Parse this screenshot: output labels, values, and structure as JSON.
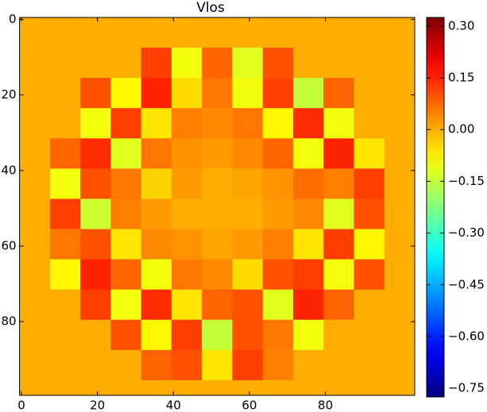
{
  "chart_data": {
    "type": "heatmap",
    "title": "Vlos",
    "colormap": "jet",
    "x": [
      3.5,
      11.5,
      19.5,
      27.5,
      35.5,
      43.5,
      51.5,
      59.5,
      67.5,
      75.5,
      83.5,
      91.5,
      99.5
    ],
    "y": [
      3.5,
      11.5,
      19.5,
      27.5,
      35.5,
      43.5,
      51.5,
      59.5,
      67.5,
      75.5,
      83.5,
      91.5,
      99.5
    ],
    "z": [
      [
        0,
        0,
        0,
        0,
        0,
        0,
        0,
        0,
        0,
        0,
        0,
        0,
        0
      ],
      [
        0,
        0,
        0,
        0,
        0.12,
        -0.1,
        0.08,
        -0.12,
        0.1,
        0,
        0,
        0,
        0
      ],
      [
        0,
        0,
        0.1,
        -0.08,
        0.15,
        -0.05,
        0.06,
        -0.1,
        0.12,
        -0.15,
        0.08,
        0,
        0
      ],
      [
        0,
        0,
        -0.1,
        0.12,
        -0.06,
        0.05,
        0.04,
        0.06,
        -0.08,
        0.14,
        -0.1,
        0,
        0
      ],
      [
        0,
        0.08,
        0.14,
        -0.12,
        0.06,
        0.03,
        0.02,
        0.04,
        0.08,
        -0.1,
        0.15,
        -0.06,
        0
      ],
      [
        0,
        -0.1,
        0.1,
        0.06,
        -0.04,
        0.02,
        0,
        0.01,
        0.03,
        0.07,
        0.05,
        0.12,
        0
      ],
      [
        0,
        0.12,
        -0.14,
        0.05,
        0.02,
        0,
        0,
        0,
        0.02,
        0.04,
        -0.12,
        0.1,
        0
      ],
      [
        0,
        0.06,
        0.1,
        -0.06,
        0.04,
        0.03,
        0.01,
        0.02,
        0.05,
        -0.06,
        0.12,
        -0.08,
        0
      ],
      [
        0,
        -0.08,
        0.15,
        0.08,
        -0.1,
        0.06,
        0.04,
        -0.05,
        0.1,
        0.12,
        -0.1,
        0.1,
        0
      ],
      [
        0,
        0,
        0.12,
        -0.1,
        0.14,
        -0.06,
        0.08,
        0.1,
        -0.12,
        0.15,
        0.08,
        0,
        0
      ],
      [
        0,
        0,
        0,
        0.1,
        -0.08,
        0.12,
        -0.15,
        0.1,
        0.06,
        -0.1,
        0,
        0,
        0
      ],
      [
        0,
        0,
        0,
        0,
        0.08,
        0.1,
        -0.06,
        0.12,
        0.05,
        0,
        0,
        0,
        0
      ],
      [
        0,
        0,
        0,
        0,
        0,
        0,
        0,
        0,
        0,
        0,
        0,
        0,
        0
      ]
    ],
    "xlim": [
      -0.5,
      103.5
    ],
    "ylim": [
      99.5,
      -0.5
    ],
    "xticks": [
      0,
      20,
      40,
      60,
      80
    ],
    "yticks": [
      0,
      20,
      40,
      60,
      80
    ],
    "clim": [
      -0.775,
      0.325
    ],
    "cticks": [
      {
        "value": 0.3,
        "label": "0.30"
      },
      {
        "value": 0.15,
        "label": "0.15"
      },
      {
        "value": 0,
        "label": "0.00"
      },
      {
        "value": -0.15,
        "label": "−0.15"
      },
      {
        "value": -0.3,
        "label": "−0.30"
      },
      {
        "value": -0.45,
        "label": "−0.45"
      },
      {
        "value": -0.6,
        "label": "−0.60"
      },
      {
        "value": -0.75,
        "label": "−0.75"
      }
    ]
  }
}
